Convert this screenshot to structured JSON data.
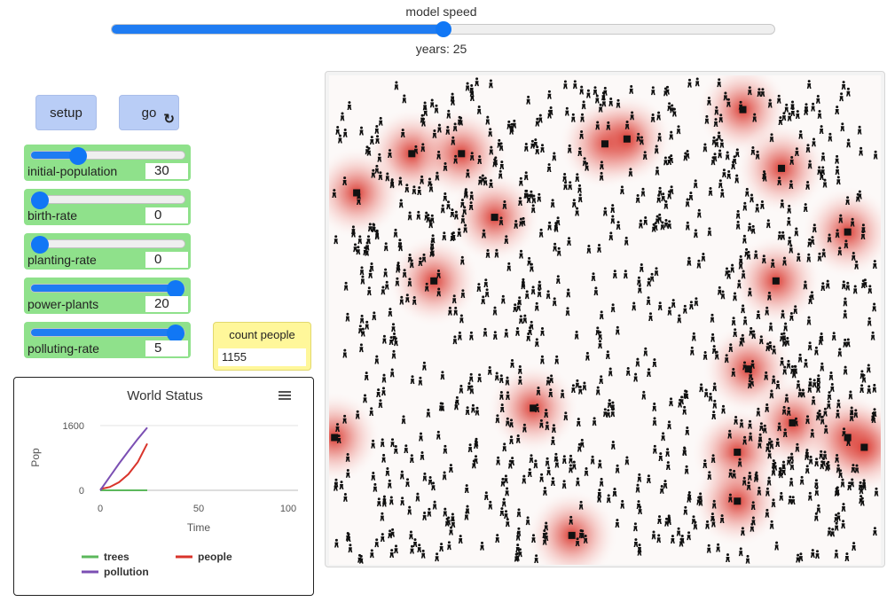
{
  "speed": {
    "label": "model speed",
    "value": 0.5
  },
  "ticks_label": "years: 25",
  "buttons": {
    "setup": "setup",
    "go": "go"
  },
  "go_icon": "forever-arrow-icon",
  "sliders": [
    {
      "name": "initial-population",
      "label": "initial-population",
      "value": "30",
      "fraction": 0.28
    },
    {
      "name": "birth-rate",
      "label": "birth-rate",
      "value": "0",
      "fraction": 0.0
    },
    {
      "name": "planting-rate",
      "label": "planting-rate",
      "value": "0",
      "fraction": 0.0
    },
    {
      "name": "power-plants",
      "label": "power-plants",
      "value": "20",
      "fraction": 1.0
    },
    {
      "name": "polluting-rate",
      "label": "polluting-rate",
      "value": "5",
      "fraction": 1.0
    }
  ],
  "monitor": {
    "label": "count people",
    "value": "1155"
  },
  "plot": {
    "menu_icon": "hamburger-menu-icon",
    "chart_data": {
      "type": "line",
      "title": "World Status",
      "xlabel": "Time",
      "ylabel": "Pop",
      "xlim": [
        0,
        100
      ],
      "ylim": [
        0,
        1600
      ],
      "x_ticks": [
        "0",
        "50",
        "100"
      ],
      "y_ticks": [
        "0",
        "1600"
      ],
      "legend_placement": "bottom",
      "series": [
        {
          "name": "trees",
          "color": "#5cb85c",
          "x": [
            0,
            25
          ],
          "y": [
            0,
            0
          ]
        },
        {
          "name": "people",
          "color": "#d9342b",
          "x": [
            0,
            5,
            10,
            15,
            20,
            25
          ],
          "y": [
            30,
            80,
            200,
            400,
            700,
            1155
          ]
        },
        {
          "name": "pollution",
          "color": "#7b4fb3",
          "x": [
            0,
            5,
            10,
            15,
            20,
            25
          ],
          "y": [
            0,
            330,
            660,
            970,
            1270,
            1550
          ]
        }
      ]
    }
  },
  "world": {
    "pollution_color": "#d9342b",
    "plant_color": "#111111",
    "people_color": "#111111",
    "power_plants": [
      [
        0.15,
        0.16
      ],
      [
        0.24,
        0.16
      ],
      [
        0.05,
        0.24
      ],
      [
        0.3,
        0.29
      ],
      [
        0.19,
        0.42
      ],
      [
        0.5,
        0.14
      ],
      [
        0.54,
        0.13
      ],
      [
        0.75,
        0.07
      ],
      [
        0.82,
        0.19
      ],
      [
        0.94,
        0.32
      ],
      [
        0.81,
        0.42
      ],
      [
        0.37,
        0.68
      ],
      [
        0.76,
        0.6
      ],
      [
        0.84,
        0.71
      ],
      [
        0.74,
        0.77
      ],
      [
        0.74,
        0.87
      ],
      [
        0.94,
        0.74
      ],
      [
        0.97,
        0.76
      ],
      [
        0.01,
        0.74
      ],
      [
        0.44,
        0.94
      ]
    ]
  }
}
